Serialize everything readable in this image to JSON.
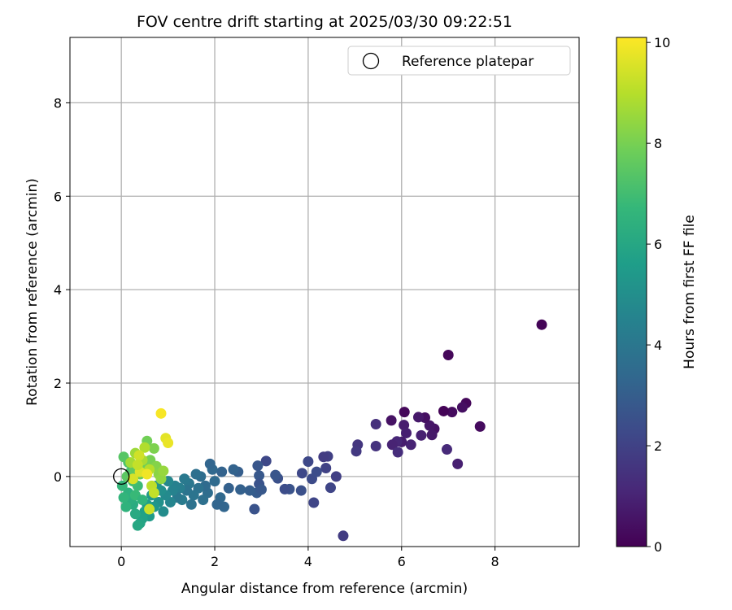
{
  "chart_data": {
    "type": "scatter",
    "title": "FOV centre drift starting at 2025/03/30 09:22:51",
    "xlabel": "Angular distance from reference (arcmin)",
    "ylabel": "Rotation from reference (arcmin)",
    "xlim": [
      -1.1,
      9.8
    ],
    "ylim": [
      -1.5,
      9.4
    ],
    "xticks": [
      "0",
      "2",
      "4",
      "6",
      "8"
    ],
    "yticks": [
      "0",
      "2",
      "4",
      "6",
      "8"
    ],
    "grid": true,
    "legend": {
      "position": "top-right",
      "label": "Reference platepar"
    },
    "reference_point": {
      "x": 0,
      "y": 0
    },
    "colorbar": {
      "label": "Hours from first FF file",
      "min": 0,
      "max": 10.1,
      "ticks": [
        "0",
        "2",
        "4",
        "6",
        "8",
        "10"
      ],
      "colormap": "viridis",
      "colors": [
        "#440154",
        "#482878",
        "#3e4989",
        "#31688e",
        "#26828e",
        "#1f9e89",
        "#35b779",
        "#6ece58",
        "#b5de2b",
        "#fde725"
      ]
    },
    "points": [
      [
        9.0,
        3.25,
        0.1
      ],
      [
        7.0,
        2.6,
        0.2
      ],
      [
        7.68,
        1.07,
        0.3
      ],
      [
        7.38,
        1.57,
        0.2
      ],
      [
        7.3,
        1.48,
        0.4
      ],
      [
        7.08,
        1.38,
        0.3
      ],
      [
        6.9,
        1.4,
        0.1
      ],
      [
        6.7,
        1.02,
        0.5
      ],
      [
        6.6,
        1.09,
        0.6
      ],
      [
        6.5,
        1.26,
        0.4
      ],
      [
        6.36,
        1.27,
        0.7
      ],
      [
        6.06,
        1.38,
        0.2
      ],
      [
        6.05,
        1.1,
        0.8
      ],
      [
        6.1,
        0.93,
        0.9
      ],
      [
        6.2,
        0.68,
        1.0
      ],
      [
        6.0,
        0.74,
        0.8
      ],
      [
        5.78,
        1.2,
        0.5
      ],
      [
        5.9,
        0.75,
        1.1
      ],
      [
        5.8,
        0.68,
        1.0
      ],
      [
        5.92,
        0.52,
        1.3
      ],
      [
        6.42,
        0.88,
        0.9
      ],
      [
        6.65,
        0.89,
        0.7
      ],
      [
        6.97,
        0.58,
        1.2
      ],
      [
        7.2,
        0.27,
        0.9
      ],
      [
        5.45,
        1.12,
        1.4
      ],
      [
        5.45,
        0.65,
        1.5
      ],
      [
        5.06,
        0.68,
        1.6
      ],
      [
        5.03,
        0.54,
        1.7
      ],
      [
        4.75,
        -1.27,
        1.8
      ],
      [
        4.42,
        0.43,
        1.9
      ],
      [
        4.38,
        0.18,
        2.0
      ],
      [
        4.33,
        0.42,
        1.8
      ],
      [
        4.48,
        -0.24,
        2.1
      ],
      [
        4.6,
        0.0,
        1.9
      ],
      [
        4.0,
        0.32,
        2.2
      ],
      [
        4.08,
        -0.05,
        2.3
      ],
      [
        4.12,
        -0.56,
        2.1
      ],
      [
        4.18,
        0.1,
        2.4
      ],
      [
        3.87,
        0.07,
        2.2
      ],
      [
        3.85,
        -0.3,
        2.5
      ],
      [
        3.6,
        -0.27,
        2.6
      ],
      [
        3.5,
        -0.27,
        2.4
      ],
      [
        3.35,
        -0.04,
        2.5
      ],
      [
        3.1,
        0.33,
        2.2
      ],
      [
        2.92,
        0.23,
        2.7
      ],
      [
        2.95,
        0.02,
        2.8
      ],
      [
        2.95,
        -0.16,
        2.6
      ],
      [
        2.9,
        -0.35,
        2.9
      ],
      [
        2.85,
        -0.7,
        2.6
      ],
      [
        3.0,
        -0.28,
        2.8
      ],
      [
        3.3,
        0.03,
        2.7
      ],
      [
        2.75,
        -0.3,
        3.0
      ],
      [
        2.55,
        -0.28,
        3.1
      ],
      [
        2.5,
        0.1,
        3.0
      ],
      [
        2.4,
        0.15,
        3.2
      ],
      [
        2.3,
        -0.25,
        3.1
      ],
      [
        2.2,
        -0.65,
        3.3
      ],
      [
        2.15,
        0.1,
        3.2
      ],
      [
        2.12,
        -0.45,
        3.4
      ],
      [
        2.05,
        -0.6,
        3.3
      ],
      [
        2.0,
        -0.1,
        3.5
      ],
      [
        1.95,
        0.15,
        3.4
      ],
      [
        1.9,
        0.27,
        3.3
      ],
      [
        1.85,
        -0.35,
        3.6
      ],
      [
        1.8,
        -0.2,
        3.5
      ],
      [
        1.75,
        -0.5,
        3.7
      ],
      [
        1.7,
        0.0,
        3.6
      ],
      [
        1.65,
        -0.25,
        3.8
      ],
      [
        1.6,
        0.05,
        3.7
      ],
      [
        1.55,
        -0.4,
        3.9
      ],
      [
        1.5,
        -0.6,
        3.8
      ],
      [
        1.45,
        -0.15,
        4.0
      ],
      [
        1.4,
        -0.3,
        3.9
      ],
      [
        1.35,
        -0.05,
        4.1
      ],
      [
        1.3,
        -0.5,
        4.2
      ],
      [
        1.25,
        -0.25,
        4.3
      ],
      [
        1.2,
        -0.45,
        4.1
      ],
      [
        1.15,
        -0.2,
        4.4
      ],
      [
        1.1,
        -0.3,
        4.5
      ],
      [
        1.05,
        -0.55,
        4.6
      ],
      [
        1.0,
        -0.1,
        4.7
      ],
      [
        0.95,
        -0.4,
        4.8
      ],
      [
        0.9,
        -0.75,
        4.9
      ],
      [
        0.85,
        -0.3,
        5.0
      ],
      [
        0.8,
        -0.55,
        5.1
      ],
      [
        0.75,
        -0.2,
        5.2
      ],
      [
        0.7,
        -0.65,
        5.3
      ],
      [
        0.65,
        -0.4,
        5.4
      ],
      [
        0.6,
        -0.85,
        5.5
      ],
      [
        0.55,
        -0.6,
        5.6
      ],
      [
        0.5,
        -0.75,
        5.7
      ],
      [
        0.45,
        -0.9,
        5.8
      ],
      [
        0.4,
        -1.0,
        5.9
      ],
      [
        0.35,
        -1.05,
        6.0
      ],
      [
        0.3,
        -0.8,
        6.1
      ],
      [
        0.25,
        -0.6,
        6.2
      ],
      [
        0.2,
        -0.5,
        6.3
      ],
      [
        0.15,
        -0.35,
        6.4
      ],
      [
        0.1,
        -0.65,
        6.5
      ],
      [
        0.05,
        -0.45,
        6.6
      ],
      [
        0.02,
        -0.2,
        6.7
      ],
      [
        0.3,
        -0.4,
        6.8
      ],
      [
        0.45,
        -0.5,
        6.6
      ],
      [
        0.35,
        -0.2,
        6.9
      ],
      [
        0.25,
        -0.1,
        7.0
      ],
      [
        0.2,
        0.1,
        7.1
      ],
      [
        0.15,
        0.3,
        7.2
      ],
      [
        0.05,
        0.42,
        7.4
      ],
      [
        0.12,
        0.0,
        7.5
      ],
      [
        0.28,
        0.15,
        7.6
      ],
      [
        0.4,
        0.05,
        7.7
      ],
      [
        0.5,
        0.2,
        7.8
      ],
      [
        0.55,
        0.76,
        7.9
      ],
      [
        0.62,
        0.35,
        8.0
      ],
      [
        0.7,
        0.6,
        8.1
      ],
      [
        0.75,
        0.22,
        8.2
      ],
      [
        0.8,
        0.05,
        8.3
      ],
      [
        0.85,
        -0.05,
        8.4
      ],
      [
        0.9,
        0.12,
        8.5
      ],
      [
        0.3,
        0.5,
        8.6
      ],
      [
        0.2,
        0.3,
        8.7
      ],
      [
        0.45,
        0.35,
        8.8
      ],
      [
        0.5,
        0.62,
        8.9
      ],
      [
        0.6,
        0.15,
        9.0
      ],
      [
        0.65,
        -0.2,
        9.1
      ],
      [
        0.7,
        -0.35,
        9.2
      ],
      [
        0.6,
        -0.7,
        9.3
      ],
      [
        0.38,
        0.45,
        9.4
      ],
      [
        0.25,
        -0.05,
        9.5
      ],
      [
        0.95,
        0.82,
        9.7
      ],
      [
        1.0,
        0.72,
        9.8
      ],
      [
        0.85,
        1.35,
        10.0
      ],
      [
        0.4,
        0.1,
        9.6
      ],
      [
        0.55,
        0.05,
        9.9
      ],
      [
        0.35,
        0.25,
        9.2
      ]
    ]
  }
}
